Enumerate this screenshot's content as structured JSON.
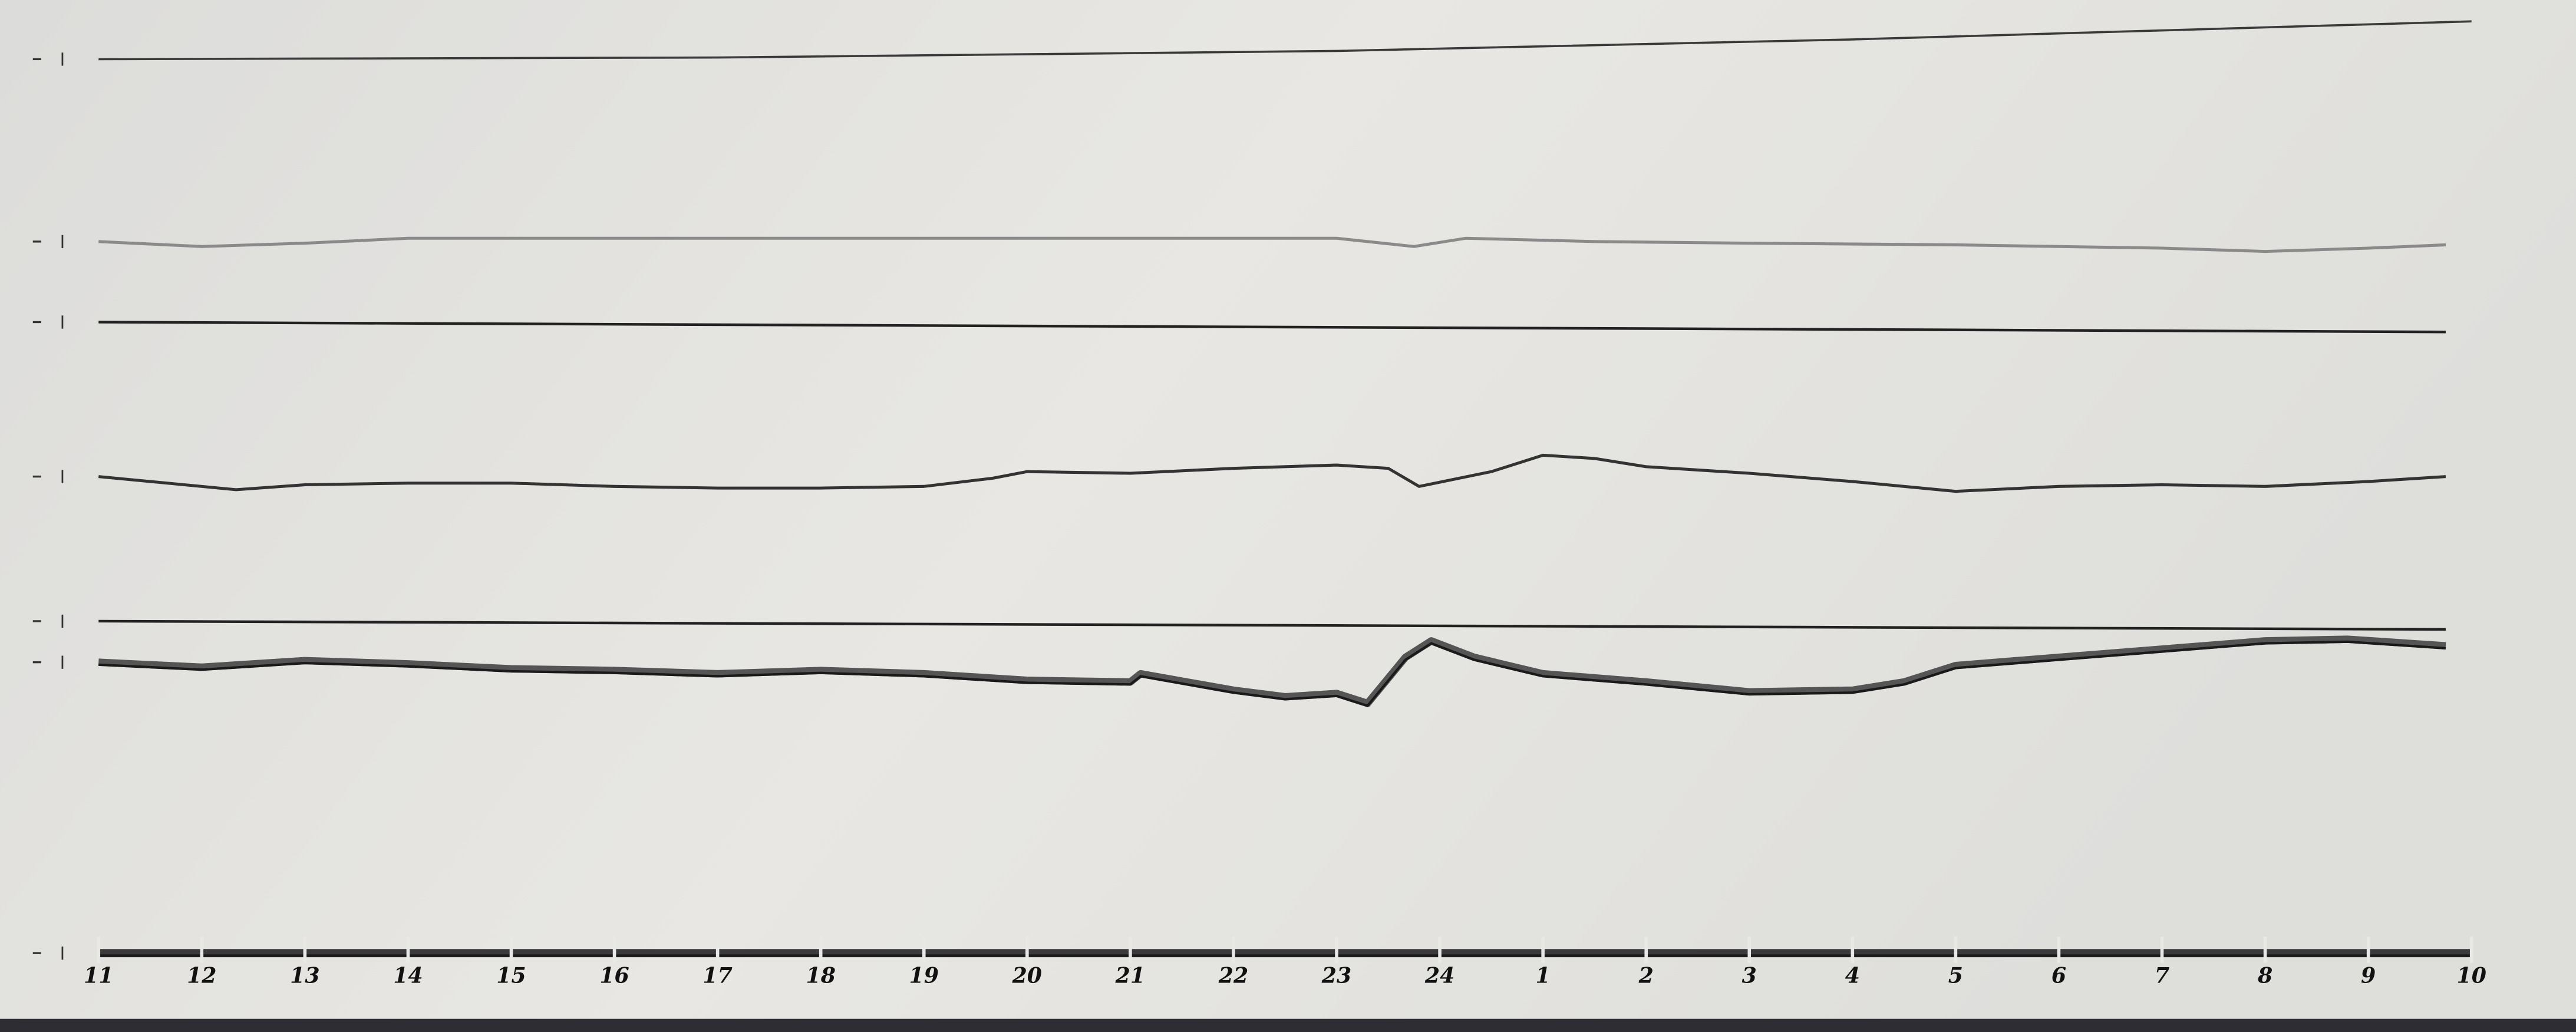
{
  "chart_data": {
    "type": "line",
    "title": "",
    "xlabel": "",
    "ylabel": "",
    "grid": false,
    "x_tick_labels": [
      "11",
      "12",
      "13",
      "14",
      "15",
      "16",
      "17",
      "18",
      "19",
      "20",
      "21",
      "22",
      "23",
      "24",
      "1",
      "2",
      "3",
      "4",
      "5",
      "6",
      "7",
      "8",
      "9",
      "10"
    ],
    "colors": {
      "paper": "#e4e4e1",
      "trace": "#2a2a2a",
      "faint_trace": "#8a8a8a"
    },
    "series": [
      {
        "points": [
          [
            "11:00",
            0
          ],
          [
            "17:00",
            1
          ],
          [
            "23:00",
            5
          ],
          [
            "04:00",
            12
          ],
          [
            "10:00",
            23
          ]
        ],
        "style": "thin"
      },
      {
        "points": [
          [
            "11:00",
            0
          ],
          [
            "12:00",
            -3
          ],
          [
            "13:00",
            -1
          ],
          [
            "14:00",
            2
          ],
          [
            "17:00",
            2
          ],
          [
            "20:00",
            2
          ],
          [
            "23:00",
            2
          ],
          [
            "23:45",
            -3
          ],
          [
            "00:15",
            2
          ],
          [
            "01:30",
            0
          ],
          [
            "03:00",
            -1
          ],
          [
            "05:00",
            -2
          ],
          [
            "07:00",
            -4
          ],
          [
            "08:00",
            -6
          ],
          [
            "09:00",
            -4
          ],
          [
            "09:45",
            -2
          ]
        ],
        "style": "faint"
      },
      {
        "points": [
          [
            "11:00",
            0
          ],
          [
            "09:45",
            -6
          ]
        ],
        "style": "baseline"
      },
      {
        "points": [
          [
            "11:00",
            0
          ],
          [
            "12:20",
            -8
          ],
          [
            "13:00",
            -5
          ],
          [
            "14:00",
            -4
          ],
          [
            "15:00",
            -4
          ],
          [
            "16:00",
            -6
          ],
          [
            "17:00",
            -7
          ],
          [
            "18:00",
            -7
          ],
          [
            "19:00",
            -6
          ],
          [
            "19:40",
            -1
          ],
          [
            "20:00",
            3
          ],
          [
            "21:00",
            2
          ],
          [
            "22:00",
            5
          ],
          [
            "23:00",
            7
          ],
          [
            "23:30",
            5
          ],
          [
            "23:48",
            -6
          ],
          [
            "00:30",
            3
          ],
          [
            "01:00",
            13
          ],
          [
            "01:30",
            11
          ],
          [
            "02:00",
            6
          ],
          [
            "03:00",
            2
          ],
          [
            "04:00",
            -3
          ],
          [
            "05:00",
            -9
          ],
          [
            "06:00",
            -6
          ],
          [
            "07:00",
            -5
          ],
          [
            "08:00",
            -6
          ],
          [
            "09:00",
            -3
          ],
          [
            "09:45",
            0
          ]
        ],
        "style": "medium"
      },
      {
        "points": [
          [
            "11:00",
            0
          ],
          [
            "09:45",
            -5
          ]
        ],
        "style": "baseline"
      },
      {
        "points": [
          [
            "11:00",
            0
          ],
          [
            "12:00",
            -3
          ],
          [
            "13:00",
            1
          ],
          [
            "14:00",
            -1
          ],
          [
            "15:00",
            -4
          ],
          [
            "16:00",
            -5
          ],
          [
            "17:00",
            -7
          ],
          [
            "18:00",
            -5
          ],
          [
            "19:00",
            -7
          ],
          [
            "20:00",
            -11
          ],
          [
            "21:00",
            -12
          ],
          [
            "21:06",
            -7
          ],
          [
            "22:00",
            -17
          ],
          [
            "22:30",
            -21
          ],
          [
            "23:00",
            -19
          ],
          [
            "23:18",
            -25
          ],
          [
            "23:40",
            3
          ],
          [
            "23:55",
            13
          ],
          [
            "00:20",
            3
          ],
          [
            "01:00",
            -7
          ],
          [
            "02:00",
            -12
          ],
          [
            "03:00",
            -18
          ],
          [
            "04:00",
            -17
          ],
          [
            "04:30",
            -12
          ],
          [
            "05:00",
            -2
          ],
          [
            "06:00",
            3
          ],
          [
            "07:00",
            8
          ],
          [
            "08:00",
            13
          ],
          [
            "08:48",
            14
          ],
          [
            "09:45",
            10
          ]
        ],
        "style": "thick"
      },
      {
        "points": [
          [
            "11:00",
            0
          ],
          [
            "10:00",
            0
          ]
        ],
        "style": "time-axis"
      }
    ]
  }
}
